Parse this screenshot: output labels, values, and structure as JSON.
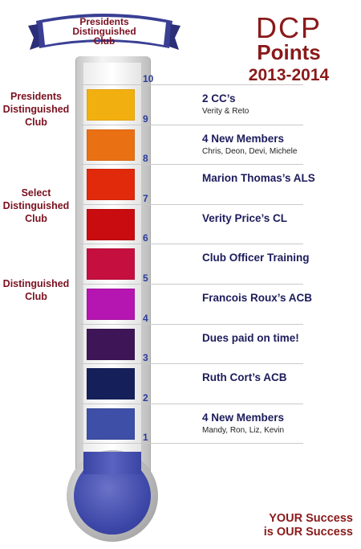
{
  "banner": {
    "line1": "Presidents",
    "line2": "Distinguished",
    "line3": "Club"
  },
  "title": {
    "line1": "DCP",
    "line2": "Points",
    "line3": "2013-2014"
  },
  "side_labels": {
    "presidents": [
      "Presidents",
      "Distinguished",
      "Club"
    ],
    "select": [
      "Select",
      "Distinguished",
      "Club"
    ],
    "distinguished": [
      "Distinguished",
      "Club"
    ]
  },
  "scale": [
    "1",
    "2",
    "3",
    "4",
    "5",
    "6",
    "7",
    "8",
    "9",
    "10"
  ],
  "segments": [
    {
      "color": "#3d4fa6",
      "label": "4 New Members",
      "sub": "Mandy, Ron, Liz, Kevin"
    },
    {
      "color": "#15205a",
      "label": "Ruth Cort’s ACB",
      "sub": ""
    },
    {
      "color": "#3e1658",
      "label": "Dues paid on time!",
      "sub": ""
    },
    {
      "color": "#b515b0",
      "label": "Francois Roux’s ACB",
      "sub": ""
    },
    {
      "color": "#c5103f",
      "label": "Club Officer Training",
      "sub": ""
    },
    {
      "color": "#c80c10",
      "label": "Verity Price’s CL",
      "sub": ""
    },
    {
      "color": "#e1290c",
      "label": "Marion Thomas’s ALS",
      "sub": ""
    },
    {
      "color": "#ea7014",
      "label": "4 New Members",
      "sub": "Chris, Deon, Devi, Michele"
    },
    {
      "color": "#f2b010",
      "label": "2 CC’s",
      "sub": "Verity & Reto"
    }
  ],
  "footer": {
    "line1": "YOUR Success",
    "line2": "is OUR Success"
  }
}
